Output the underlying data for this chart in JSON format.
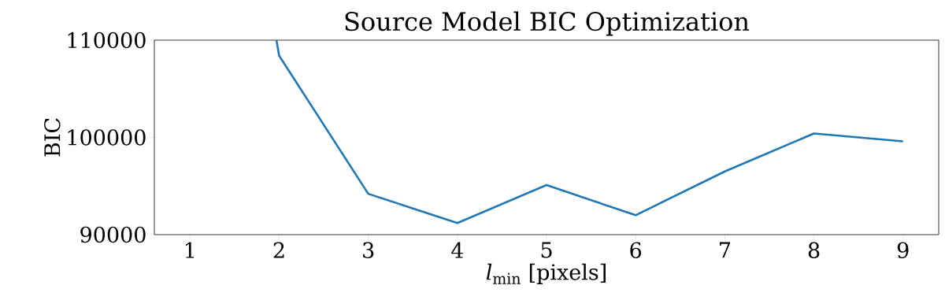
{
  "chart_data": {
    "type": "line",
    "title": "Source Model BIC Optimization",
    "xlabel": "*l*$_{min}$ [pixels]",
    "ylabel": "BIC",
    "x": [
      1.97,
      2,
      3,
      4,
      5,
      6,
      7,
      8,
      9
    ],
    "series": [
      {
        "color": "#1f77b4",
        "values": [
          110000,
          108400,
          94200,
          91200,
          95100,
          92000,
          96500,
          100400,
          99600
        ]
      }
    ],
    "xlim": [
      0.6,
      9.4
    ],
    "ylim": [
      90000,
      110000
    ],
    "xticks": [
      1,
      2,
      3,
      4,
      5,
      6,
      7,
      8,
      9
    ],
    "yticks": [
      90000,
      100000,
      110000
    ],
    "grid": false,
    "marker": "none",
    "line_style": "solid"
  }
}
